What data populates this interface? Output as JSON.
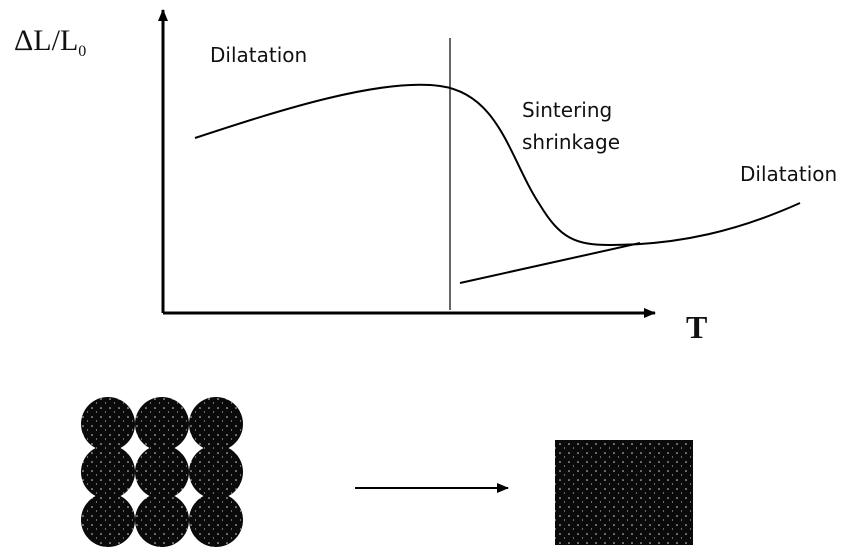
{
  "y_axis_label": {
    "main": "ΔL/L",
    "subscript": "0"
  },
  "x_axis_label": "T",
  "annotations": {
    "left": "Dilatation",
    "middle": [
      "Sintering",
      "shrinkage"
    ],
    "right": "Dilatation"
  }
}
